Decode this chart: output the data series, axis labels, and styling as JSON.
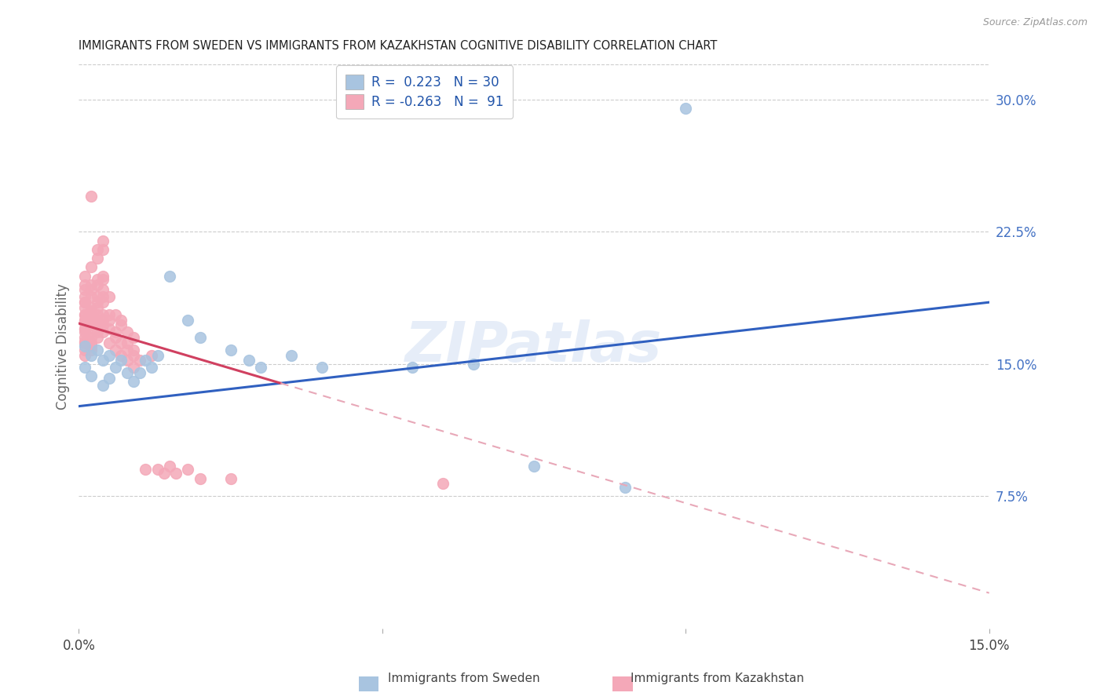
{
  "title": "IMMIGRANTS FROM SWEDEN VS IMMIGRANTS FROM KAZAKHSTAN COGNITIVE DISABILITY CORRELATION CHART",
  "source": "Source: ZipAtlas.com",
  "ylabel": "Cognitive Disability",
  "right_yticks": [
    "30.0%",
    "22.5%",
    "15.0%",
    "7.5%"
  ],
  "right_ytick_vals": [
    0.3,
    0.225,
    0.15,
    0.075
  ],
  "xlim": [
    0.0,
    0.15
  ],
  "ylim": [
    0.0,
    0.32
  ],
  "sweden_color": "#a8c4e0",
  "kazakhstan_color": "#f4a8b8",
  "sweden_line_color": "#3060c0",
  "kazakhstan_line_color": "#d04060",
  "kazakhstan_line_dashed_color": "#e8a8b8",
  "legend_sweden_label": "R =  0.223   N = 30",
  "legend_kazakhstan_label": "R = -0.263   N =  91",
  "sweden_R": 0.223,
  "kazakhstan_R": -0.263,
  "watermark_text": "ZIPatlas",
  "sweden_points": [
    [
      0.001,
      0.16
    ],
    [
      0.001,
      0.148
    ],
    [
      0.002,
      0.155
    ],
    [
      0.002,
      0.143
    ],
    [
      0.003,
      0.158
    ],
    [
      0.004,
      0.152
    ],
    [
      0.004,
      0.138
    ],
    [
      0.005,
      0.155
    ],
    [
      0.005,
      0.142
    ],
    [
      0.006,
      0.148
    ],
    [
      0.007,
      0.152
    ],
    [
      0.008,
      0.145
    ],
    [
      0.009,
      0.14
    ],
    [
      0.01,
      0.145
    ],
    [
      0.011,
      0.152
    ],
    [
      0.012,
      0.148
    ],
    [
      0.013,
      0.155
    ],
    [
      0.015,
      0.2
    ],
    [
      0.018,
      0.175
    ],
    [
      0.02,
      0.165
    ],
    [
      0.025,
      0.158
    ],
    [
      0.028,
      0.152
    ],
    [
      0.03,
      0.148
    ],
    [
      0.035,
      0.155
    ],
    [
      0.04,
      0.148
    ],
    [
      0.055,
      0.148
    ],
    [
      0.065,
      0.15
    ],
    [
      0.075,
      0.092
    ],
    [
      0.09,
      0.08
    ],
    [
      0.1,
      0.295
    ]
  ],
  "kazakhstan_points": [
    [
      0.001,
      0.17
    ],
    [
      0.001,
      0.163
    ],
    [
      0.001,
      0.178
    ],
    [
      0.001,
      0.185
    ],
    [
      0.001,
      0.173
    ],
    [
      0.001,
      0.168
    ],
    [
      0.001,
      0.175
    ],
    [
      0.001,
      0.192
    ],
    [
      0.001,
      0.182
    ],
    [
      0.001,
      0.165
    ],
    [
      0.001,
      0.195
    ],
    [
      0.001,
      0.158
    ],
    [
      0.001,
      0.178
    ],
    [
      0.001,
      0.185
    ],
    [
      0.001,
      0.162
    ],
    [
      0.001,
      0.2
    ],
    [
      0.001,
      0.17
    ],
    [
      0.001,
      0.155
    ],
    [
      0.001,
      0.175
    ],
    [
      0.001,
      0.188
    ],
    [
      0.002,
      0.205
    ],
    [
      0.002,
      0.178
    ],
    [
      0.002,
      0.168
    ],
    [
      0.002,
      0.182
    ],
    [
      0.002,
      0.16
    ],
    [
      0.002,
      0.192
    ],
    [
      0.002,
      0.175
    ],
    [
      0.002,
      0.188
    ],
    [
      0.002,
      0.162
    ],
    [
      0.002,
      0.178
    ],
    [
      0.002,
      0.172
    ],
    [
      0.002,
      0.195
    ],
    [
      0.002,
      0.165
    ],
    [
      0.002,
      0.18
    ],
    [
      0.002,
      0.245
    ],
    [
      0.002,
      0.158
    ],
    [
      0.003,
      0.215
    ],
    [
      0.003,
      0.182
    ],
    [
      0.003,
      0.188
    ],
    [
      0.003,
      0.175
    ],
    [
      0.003,
      0.198
    ],
    [
      0.003,
      0.168
    ],
    [
      0.003,
      0.178
    ],
    [
      0.003,
      0.21
    ],
    [
      0.003,
      0.172
    ],
    [
      0.003,
      0.195
    ],
    [
      0.003,
      0.165
    ],
    [
      0.003,
      0.185
    ],
    [
      0.004,
      0.22
    ],
    [
      0.004,
      0.2
    ],
    [
      0.004,
      0.178
    ],
    [
      0.004,
      0.185
    ],
    [
      0.004,
      0.198
    ],
    [
      0.004,
      0.172
    ],
    [
      0.004,
      0.188
    ],
    [
      0.004,
      0.215
    ],
    [
      0.004,
      0.168
    ],
    [
      0.004,
      0.175
    ],
    [
      0.004,
      0.192
    ],
    [
      0.005,
      0.178
    ],
    [
      0.005,
      0.188
    ],
    [
      0.005,
      0.17
    ],
    [
      0.005,
      0.162
    ],
    [
      0.005,
      0.175
    ],
    [
      0.006,
      0.168
    ],
    [
      0.006,
      0.158
    ],
    [
      0.006,
      0.178
    ],
    [
      0.006,
      0.165
    ],
    [
      0.007,
      0.172
    ],
    [
      0.007,
      0.162
    ],
    [
      0.007,
      0.175
    ],
    [
      0.007,
      0.155
    ],
    [
      0.008,
      0.158
    ],
    [
      0.008,
      0.168
    ],
    [
      0.008,
      0.162
    ],
    [
      0.008,
      0.152
    ],
    [
      0.009,
      0.155
    ],
    [
      0.009,
      0.148
    ],
    [
      0.009,
      0.165
    ],
    [
      0.009,
      0.158
    ],
    [
      0.01,
      0.152
    ],
    [
      0.011,
      0.09
    ],
    [
      0.012,
      0.155
    ],
    [
      0.013,
      0.09
    ],
    [
      0.014,
      0.088
    ],
    [
      0.015,
      0.092
    ],
    [
      0.016,
      0.088
    ],
    [
      0.018,
      0.09
    ],
    [
      0.02,
      0.085
    ],
    [
      0.025,
      0.085
    ],
    [
      0.06,
      0.082
    ]
  ]
}
